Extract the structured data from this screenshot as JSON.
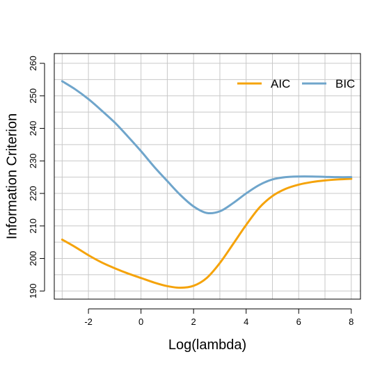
{
  "chart_data": {
    "type": "line",
    "title": "",
    "xlabel": "Log(lambda)",
    "ylabel": "Information Criterion",
    "xlim": [
      -3.3,
      8.35
    ],
    "ylim": [
      187.5,
      263
    ],
    "xticks": [
      -2,
      0,
      2,
      4,
      6,
      8
    ],
    "yticks": [
      190,
      200,
      210,
      220,
      230,
      240,
      250,
      260
    ],
    "grid": true,
    "legend_position": "top-right",
    "series": [
      {
        "name": "AIC",
        "color": "#F5A30A",
        "x": [
          -3,
          -2.5,
          -2,
          -1.5,
          -1,
          -0.5,
          0,
          0.5,
          1,
          1.5,
          2,
          2.5,
          3,
          3.5,
          4,
          4.5,
          5,
          5.5,
          6,
          6.5,
          7,
          7.5,
          8
        ],
        "y": [
          205.8,
          203.5,
          201.0,
          198.8,
          197.0,
          195.4,
          194.0,
          192.6,
          191.5,
          191.0,
          191.6,
          194.0,
          198.6,
          204.4,
          210.3,
          215.6,
          219.2,
          221.4,
          222.7,
          223.5,
          224.0,
          224.3,
          224.5
        ]
      },
      {
        "name": "BIC",
        "color": "#6FA5CB",
        "x": [
          -3,
          -2.5,
          -2,
          -1.5,
          -1,
          -0.5,
          0,
          0.5,
          1,
          1.5,
          2,
          2.5,
          3,
          3.5,
          4,
          4.5,
          5,
          5.5,
          6,
          6.5,
          7,
          7.5,
          8
        ],
        "y": [
          254.5,
          252.0,
          249.0,
          245.5,
          241.8,
          237.5,
          233.0,
          228.2,
          223.8,
          219.5,
          216.0,
          214.0,
          214.5,
          217.0,
          220.0,
          222.6,
          224.3,
          225.0,
          225.2,
          225.2,
          225.1,
          225.0,
          225.0
        ]
      }
    ]
  }
}
